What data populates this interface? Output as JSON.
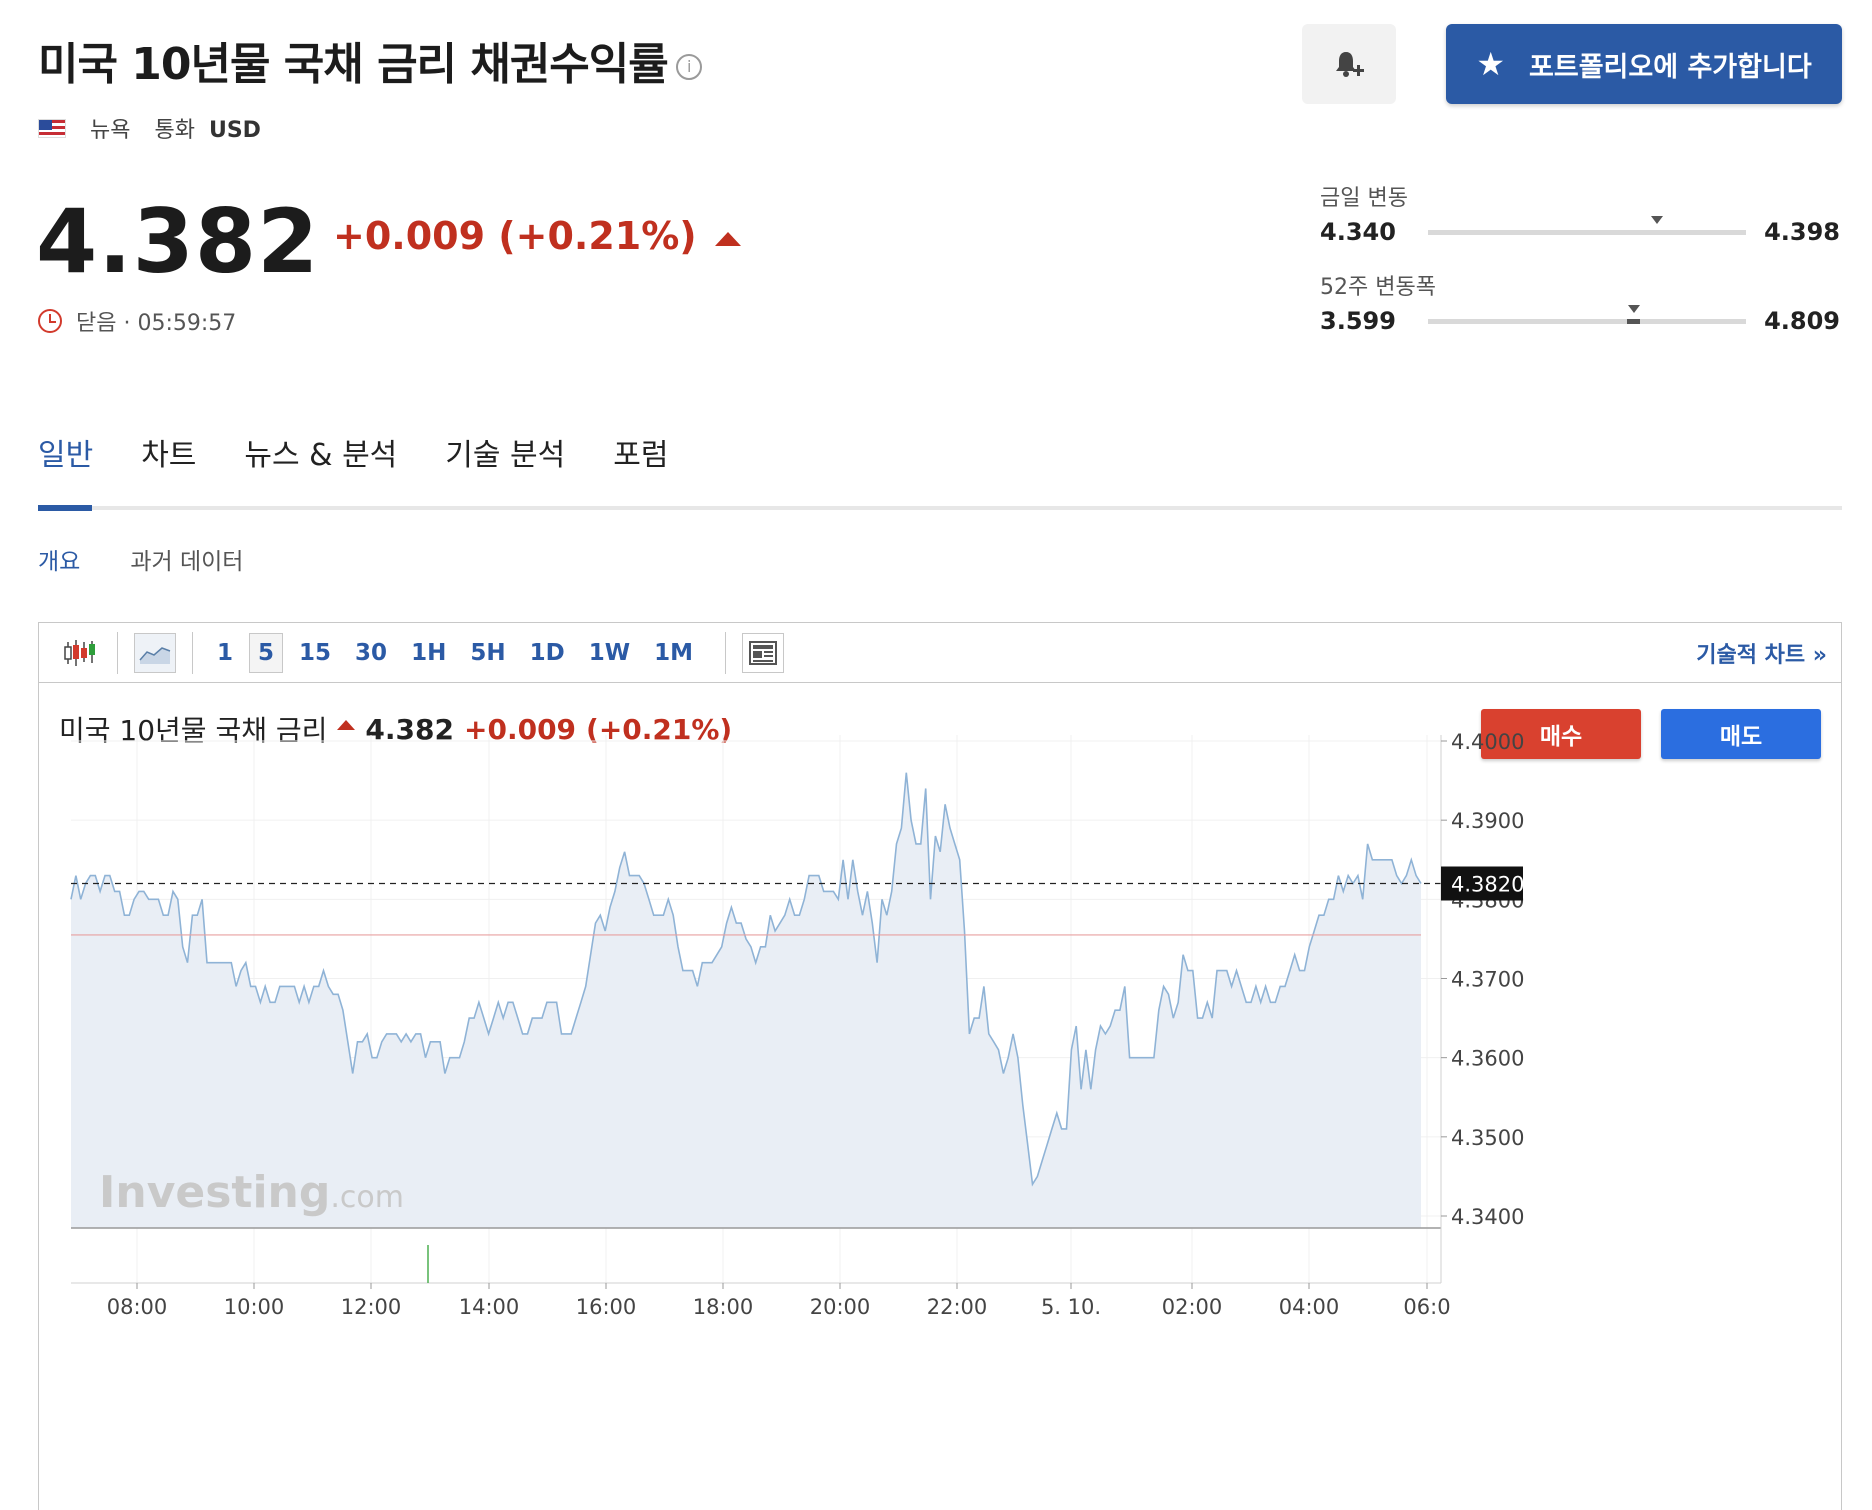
{
  "header": {
    "title": "미국 10년물 국채 금리 채권수익률",
    "info_icon": "info-icon",
    "exchange": "뉴욕",
    "currency_label": "통화",
    "currency": "USD"
  },
  "actions": {
    "alert_icon": "bell-plus-icon",
    "portfolio_label": "포트폴리오에 추가합니다"
  },
  "quote": {
    "price": "4.382",
    "change": "+0.009 (+0.21%)",
    "status": "닫음 · 05:59:57"
  },
  "ranges": {
    "day_label": "금일 변동",
    "day_low": "4.340",
    "day_high": "4.398",
    "day_position": 0.72,
    "week52_label": "52주 변동폭",
    "week52_low": "3.599",
    "week52_high": "4.809",
    "week52_position": 0.647
  },
  "tabs": [
    "일반",
    "차트",
    "뉴스 & 분석",
    "기술 분석",
    "포럼"
  ],
  "subtabs": [
    "개요",
    "과거 데이터"
  ],
  "toolbar": {
    "intervals": [
      "1",
      "5",
      "15",
      "30",
      "1H",
      "5H",
      "1D",
      "1W",
      "1M"
    ],
    "selected_interval": "5",
    "tech_chart_link": "기술적 차트 »"
  },
  "chart_head": {
    "name": "미국 10년물 국채 금리",
    "price": "4.382",
    "change": "+0.009",
    "change_pct": "(+0.21%)",
    "buy_label": "매수",
    "sell_label": "매도"
  },
  "colors": {
    "accent": "#2b5aa5",
    "down_red": "#c0301f",
    "line": "#8fb3d6",
    "area": "#e9eef5"
  },
  "watermark": {
    "main": "Investing",
    "suffix": ".com"
  },
  "chart_data": {
    "type": "area",
    "ylim": [
      4.334,
      4.4015
    ],
    "y_ticks": [
      "4.4000",
      "4.3900",
      "4.3800",
      "4.3700",
      "4.3600",
      "4.3500",
      "4.3400"
    ],
    "x_ticks": [
      "08:00",
      "10:00",
      "12:00",
      "14:00",
      "16:00",
      "18:00",
      "20:00",
      "22:00",
      "5. 10.",
      "02:00",
      "04:00",
      "06:0"
    ],
    "last_price_label": "4.3820",
    "last_price": 4.382,
    "ref_line": 4.3755,
    "values": [
      4.38,
      4.383,
      4.38,
      4.382,
      4.383,
      4.383,
      4.381,
      4.383,
      4.383,
      4.381,
      4.381,
      4.378,
      4.378,
      4.38,
      4.381,
      4.381,
      4.38,
      4.38,
      4.38,
      4.378,
      4.378,
      4.381,
      4.38,
      4.374,
      4.372,
      4.378,
      4.378,
      4.38,
      4.372,
      4.372,
      4.372,
      4.372,
      4.372,
      4.372,
      4.369,
      4.371,
      4.372,
      4.369,
      4.369,
      4.367,
      4.369,
      4.367,
      4.367,
      4.369,
      4.369,
      4.369,
      4.369,
      4.367,
      4.369,
      4.367,
      4.369,
      4.369,
      4.371,
      4.369,
      4.368,
      4.368,
      4.366,
      4.362,
      4.358,
      4.362,
      4.362,
      4.363,
      4.36,
      4.36,
      4.362,
      4.363,
      4.363,
      4.363,
      4.362,
      4.363,
      4.362,
      4.363,
      4.363,
      4.36,
      4.362,
      4.362,
      4.362,
      4.358,
      4.36,
      4.36,
      4.36,
      4.362,
      4.365,
      4.365,
      4.367,
      4.365,
      4.363,
      4.365,
      4.367,
      4.365,
      4.367,
      4.367,
      4.365,
      4.363,
      4.363,
      4.365,
      4.365,
      4.365,
      4.367,
      4.367,
      4.367,
      4.363,
      4.363,
      4.363,
      4.365,
      4.367,
      4.369,
      4.373,
      4.377,
      4.378,
      4.376,
      4.379,
      4.381,
      4.384,
      4.386,
      4.383,
      4.383,
      4.383,
      4.382,
      4.38,
      4.378,
      4.378,
      4.378,
      4.38,
      4.378,
      4.374,
      4.371,
      4.371,
      4.371,
      4.369,
      4.372,
      4.372,
      4.372,
      4.373,
      4.374,
      4.377,
      4.379,
      4.377,
      4.377,
      4.375,
      4.374,
      4.372,
      4.374,
      4.374,
      4.378,
      4.376,
      4.377,
      4.378,
      4.38,
      4.378,
      4.378,
      4.38,
      4.383,
      4.383,
      4.383,
      4.381,
      4.381,
      4.381,
      4.38,
      4.385,
      4.38,
      4.385,
      4.381,
      4.378,
      4.381,
      4.377,
      4.372,
      4.38,
      4.378,
      4.381,
      4.387,
      4.389,
      4.396,
      4.39,
      4.387,
      4.387,
      4.394,
      4.38,
      4.388,
      4.386,
      4.392,
      4.389,
      4.387,
      4.385,
      4.376,
      4.363,
      4.365,
      4.365,
      4.369,
      4.363,
      4.362,
      4.361,
      4.358,
      4.36,
      4.363,
      4.36,
      4.354,
      4.349,
      4.344,
      4.345,
      4.347,
      4.349,
      4.351,
      4.353,
      4.351,
      4.351,
      4.361,
      4.364,
      4.356,
      4.361,
      4.356,
      4.361,
      4.364,
      4.363,
      4.364,
      4.366,
      4.366,
      4.369,
      4.36,
      4.36,
      4.36,
      4.36,
      4.36,
      4.36,
      4.366,
      4.369,
      4.368,
      4.365,
      4.367,
      4.373,
      4.371,
      4.371,
      4.365,
      4.365,
      4.367,
      4.365,
      4.371,
      4.371,
      4.371,
      4.369,
      4.371,
      4.369,
      4.367,
      4.367,
      4.369,
      4.367,
      4.369,
      4.367,
      4.367,
      4.369,
      4.369,
      4.371,
      4.373,
      4.371,
      4.371,
      4.374,
      4.376,
      4.378,
      4.378,
      4.38,
      4.38,
      4.383,
      4.381,
      4.383,
      4.382,
      4.383,
      4.38,
      4.387,
      4.385,
      4.385,
      4.385,
      4.385,
      4.385,
      4.383,
      4.382,
      4.383,
      4.385,
      4.383,
      4.382
    ]
  }
}
